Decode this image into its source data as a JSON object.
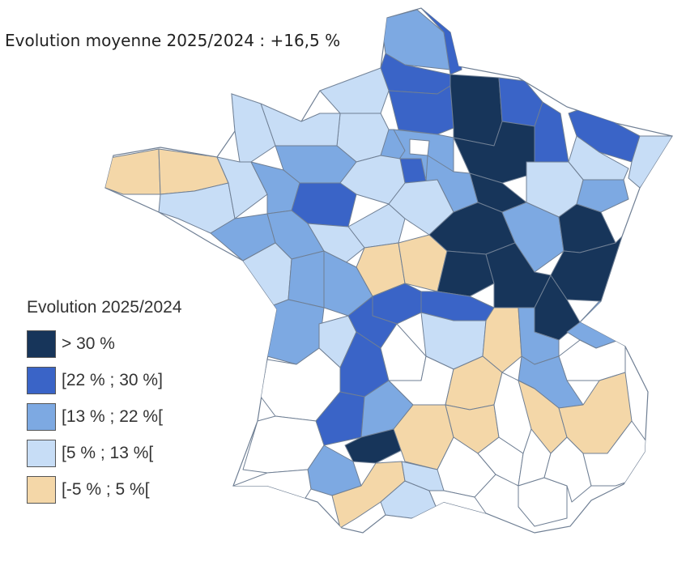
{
  "header": {
    "text": "Evolution moyenne 2025/2024 : +16,5 %"
  },
  "legend": {
    "title": "Evolution 2025/2024",
    "items": [
      {
        "label": "> 30 %",
        "color": "#17355a"
      },
      {
        "label": "[22 % ; 30 %]",
        "color": "#3a64c7"
      },
      {
        "label": "[13 % ; 22 %[",
        "color": "#7da9e2"
      },
      {
        "label": "[5 % ; 13 %[",
        "color": "#c7ddf6"
      },
      {
        "label": "[-5 % ; 5 %[",
        "color": "#f4d7a8"
      }
    ]
  },
  "map": {
    "no_data_color": "#ffffff",
    "border_color": "#6f7f94"
  }
}
